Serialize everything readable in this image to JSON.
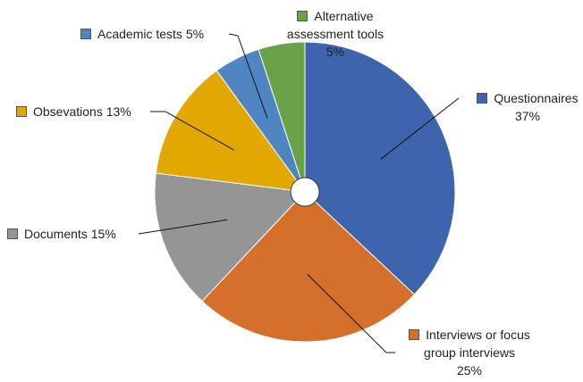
{
  "chart_data": {
    "type": "pie",
    "categories": [
      "Questionnaires",
      "Interviews or focus group interviews",
      "Documents",
      "Obsevations",
      "Academic tests",
      "Alternative assessment tools"
    ],
    "values": [
      37,
      25,
      15,
      13,
      5,
      5
    ],
    "value_labels": [
      "37%",
      "25%",
      "15%",
      "13%",
      "5%",
      "5%"
    ],
    "colors": [
      "#3e64ae",
      "#d4702b",
      "#959595",
      "#e2a800",
      "#4f86c2",
      "#6aa247"
    ]
  }
}
